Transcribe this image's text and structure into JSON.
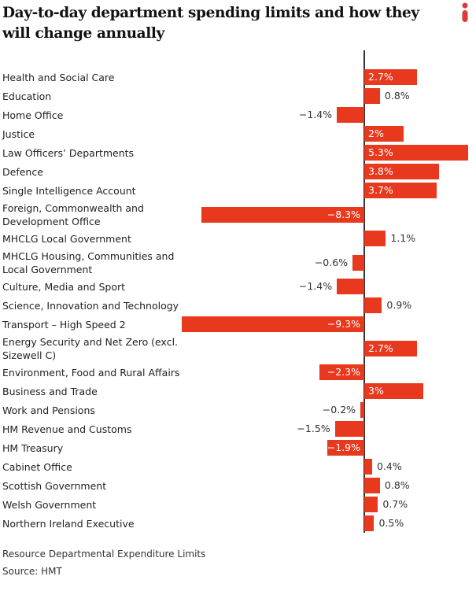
{
  "title": "Day-to-day department spending limits and how they will change annually",
  "logo": {
    "text": "i",
    "color": "#e0373b"
  },
  "colors": {
    "bar": "#e8391e",
    "label_inside": "#ffffff",
    "label_outside": "#333333"
  },
  "chart_data": {
    "type": "bar",
    "orientation": "horizontal",
    "title": "Day-to-day department spending limits and how they will change annually",
    "unit": "%",
    "xlim": [
      -9.3,
      5.3
    ],
    "grid": false,
    "categories": [
      "Health and Social Care",
      "Education",
      "Home Office",
      "Justice",
      "Law Officers’ Departments",
      "Defence",
      "Single Intelligence Account",
      "Foreign, Commonwealth and Development Office",
      "MHCLG Local Government",
      "MHCLG Housing, Communities and Local Government",
      "Culture, Media and Sport",
      "Science, Innovation and Technology",
      "Transport – High Speed 2",
      "Energy Security and Net Zero (excl. Sizewell C)",
      "Environment, Food and Rural Affairs",
      "Business and Trade",
      "Work and Pensions",
      "HM Revenue and Customs",
      "HM Treasury",
      "Cabinet Office",
      "Scottish Government",
      "Welsh Government",
      "Northern Ireland Executive"
    ],
    "values": [
      2.7,
      0.8,
      -1.4,
      2,
      5.3,
      3.8,
      3.7,
      -8.3,
      1.1,
      -0.6,
      -1.4,
      0.9,
      -9.3,
      2.7,
      -2.3,
      3,
      -0.2,
      -1.5,
      -1.9,
      0.4,
      0.8,
      0.7,
      0.5
    ],
    "data_labels": [
      "2.7%",
      "0.8%",
      "-1.4%",
      "2%",
      "5.3%",
      "3.8%",
      "3.7%",
      "-8.3%",
      "1.1%",
      "-0.6%",
      "-1.4%",
      "0.9%",
      "-9.3%",
      "2.7%",
      "-2.3%",
      "3%",
      "-0.2%",
      "-1.5%",
      "-1.9%",
      "0.4%",
      "0.8%",
      "0.7%",
      "0.5%"
    ]
  },
  "footer": {
    "note": "Resource Departmental Expenditure Limits",
    "source": "Source: HMT"
  }
}
